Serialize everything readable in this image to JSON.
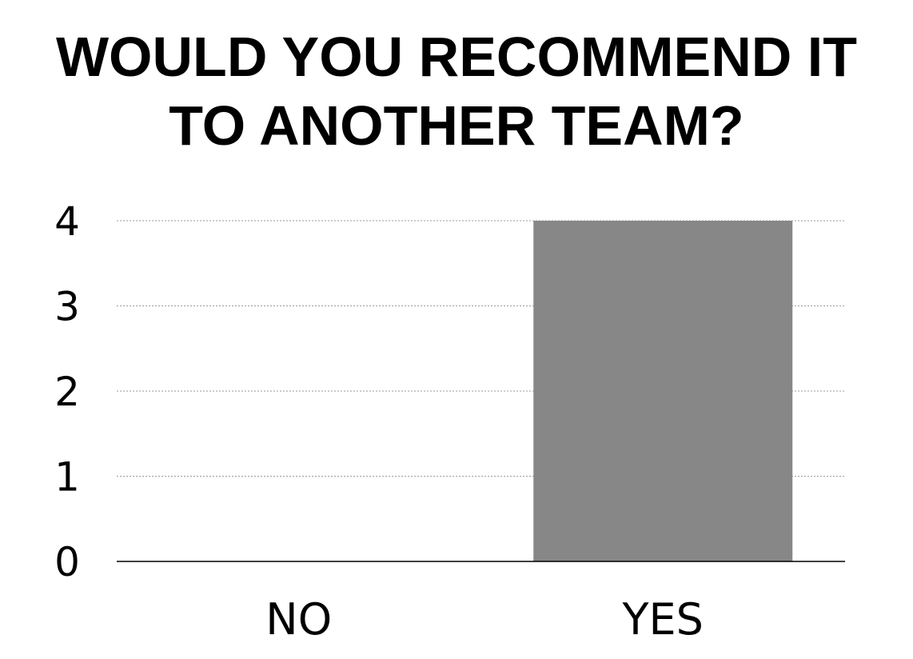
{
  "chart_data": {
    "type": "bar",
    "title_lines": [
      "WOULD YOU RECOMMEND IT",
      "TO ANOTHER TEAM?"
    ],
    "categories": [
      "NO",
      "YES"
    ],
    "values": [
      0,
      4
    ],
    "ylim": [
      0,
      4
    ],
    "yticks": [
      "0",
      "1",
      "2",
      "3",
      "4"
    ],
    "grid": true,
    "bar_color": "#878787",
    "grid_color": "#9a9a9a",
    "axis_color": "#000000"
  }
}
